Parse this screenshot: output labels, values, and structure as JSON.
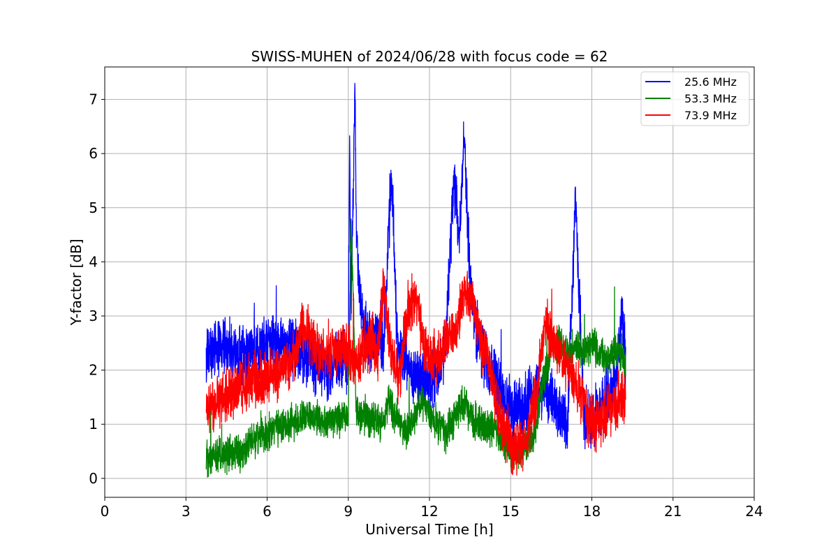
{
  "chart_data": {
    "type": "line",
    "title": "SWISS-MUHEN of 2024/06/28 with focus code = 62",
    "xlabel": "Universal Time [h]",
    "ylabel": "Y-factor [dB]",
    "xlim": [
      0,
      24
    ],
    "ylim": [
      -0.35,
      7.6
    ],
    "x_ticks": [
      0,
      3,
      6,
      9,
      12,
      15,
      18,
      21,
      24
    ],
    "y_ticks": [
      0,
      1,
      2,
      3,
      4,
      5,
      6,
      7
    ],
    "grid": true,
    "legend_position": "top-right",
    "series": [
      {
        "name": "25.6 MHz",
        "color": "#0000ff",
        "x": [
          3.75,
          4.0,
          4.5,
          5.0,
          5.5,
          6.0,
          6.5,
          7.0,
          7.5,
          8.0,
          8.5,
          9.0,
          9.05,
          9.1,
          9.25,
          9.3,
          9.5,
          9.8,
          10.0,
          10.3,
          10.6,
          10.8,
          11.0,
          11.3,
          11.6,
          12.0,
          12.3,
          12.6,
          12.9,
          13.1,
          13.3,
          13.5,
          13.8,
          14.1,
          14.4,
          14.7,
          15.0,
          15.3,
          15.6,
          15.9,
          16.2,
          16.5,
          16.8,
          17.1,
          17.4,
          17.7,
          18.0,
          18.3,
          18.6,
          18.9,
          19.1,
          19.25
        ],
        "y": [
          2.3,
          2.4,
          2.4,
          2.3,
          2.35,
          2.45,
          2.5,
          2.4,
          2.2,
          2.0,
          2.1,
          2.2,
          6.2,
          3.0,
          7.2,
          4.5,
          3.0,
          2.5,
          2.6,
          2.5,
          5.6,
          2.6,
          2.3,
          1.9,
          1.8,
          1.8,
          1.9,
          2.5,
          5.5,
          4.5,
          6.3,
          3.5,
          2.6,
          2.2,
          1.9,
          1.5,
          1.3,
          1.2,
          1.4,
          1.6,
          1.7,
          1.5,
          1.2,
          1.1,
          5.2,
          1.2,
          1.0,
          1.3,
          1.5,
          1.8,
          3.2,
          2.2
        ]
      },
      {
        "name": "53.3 MHz",
        "color": "#008000",
        "x": [
          3.75,
          4.0,
          4.5,
          5.0,
          5.5,
          6.0,
          6.5,
          7.0,
          7.5,
          8.0,
          8.5,
          9.0,
          9.1,
          9.3,
          9.6,
          9.9,
          10.2,
          10.5,
          10.8,
          11.1,
          11.4,
          11.7,
          12.0,
          12.3,
          12.6,
          12.9,
          13.2,
          13.5,
          13.8,
          14.1,
          14.4,
          14.7,
          15.0,
          15.3,
          15.6,
          15.9,
          16.2,
          16.5,
          16.8,
          17.1,
          17.4,
          17.7,
          18.0,
          18.3,
          18.6,
          18.9,
          19.1,
          19.25
        ],
        "y": [
          0.3,
          0.4,
          0.4,
          0.5,
          0.7,
          0.85,
          0.95,
          1.05,
          1.15,
          1.05,
          1.1,
          1.1,
          4.8,
          1.2,
          1.15,
          1.1,
          0.95,
          1.4,
          1.1,
          0.9,
          1.0,
          1.45,
          1.2,
          0.95,
          0.85,
          1.1,
          1.4,
          1.2,
          1.0,
          0.95,
          0.9,
          0.7,
          0.55,
          0.5,
          0.6,
          0.9,
          1.8,
          2.4,
          2.5,
          2.3,
          2.4,
          2.3,
          2.5,
          2.3,
          2.2,
          2.4,
          2.3,
          2.0
        ]
      },
      {
        "name": "73.9 MHz",
        "color": "#ff0000",
        "x": [
          3.75,
          4.0,
          4.5,
          5.0,
          5.5,
          6.0,
          6.5,
          7.0,
          7.3,
          7.6,
          8.0,
          8.5,
          9.0,
          9.3,
          9.6,
          9.9,
          10.1,
          10.3,
          10.6,
          10.9,
          11.2,
          11.5,
          11.8,
          12.1,
          12.4,
          12.7,
          13.0,
          13.3,
          13.6,
          13.9,
          14.2,
          14.5,
          14.8,
          15.1,
          15.4,
          15.7,
          16.0,
          16.3,
          16.6,
          16.9,
          17.2,
          17.5,
          17.8,
          18.1,
          18.4,
          18.7,
          19.0,
          19.25
        ],
        "y": [
          1.3,
          1.4,
          1.5,
          1.7,
          1.85,
          1.9,
          2.0,
          2.2,
          2.8,
          2.6,
          2.3,
          2.4,
          2.3,
          2.1,
          2.3,
          2.5,
          2.2,
          3.7,
          2.2,
          1.8,
          3.2,
          3.3,
          2.4,
          2.2,
          2.3,
          2.6,
          2.7,
          3.5,
          3.3,
          2.5,
          2.1,
          1.3,
          0.9,
          0.55,
          0.5,
          0.9,
          1.7,
          3.0,
          2.4,
          2.2,
          2.0,
          1.6,
          1.2,
          1.0,
          1.1,
          1.3,
          1.5,
          1.4
        ]
      }
    ]
  }
}
